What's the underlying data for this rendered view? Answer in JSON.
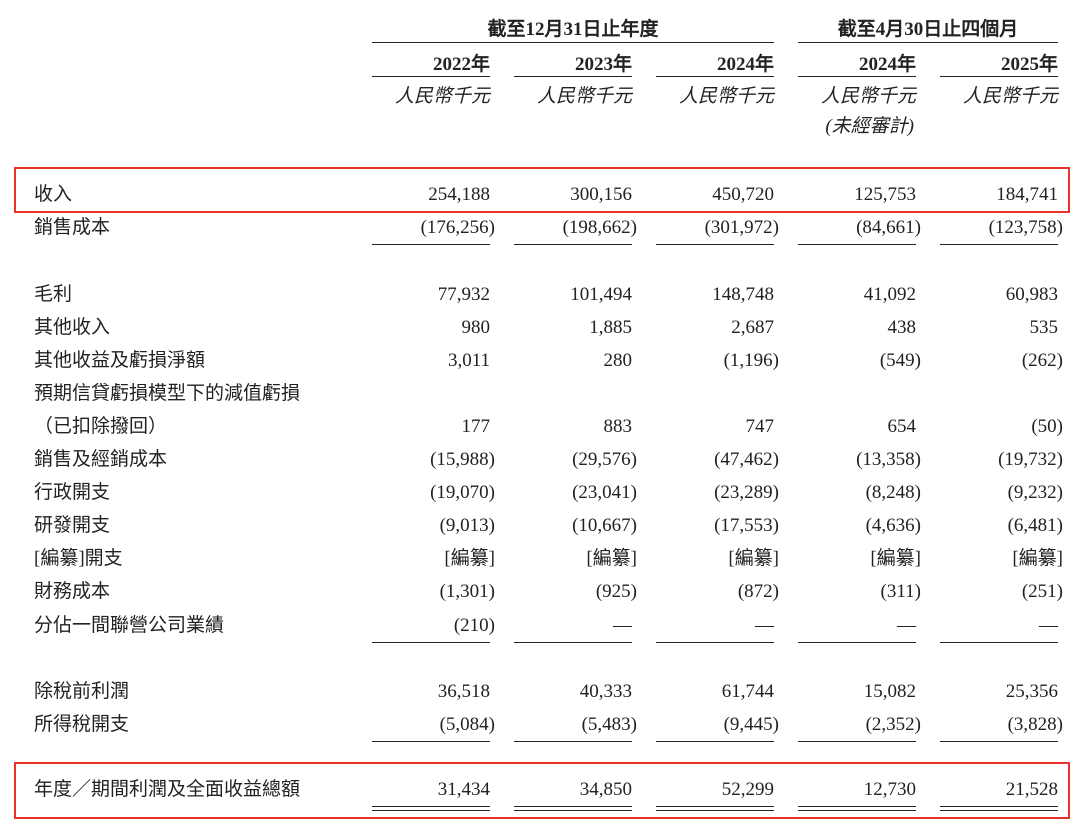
{
  "header": {
    "groups": [
      "截至12月31日止年度",
      "截至4月30日止四個月"
    ],
    "years": [
      "2022年",
      "2023年",
      "2024年",
      "2024年",
      "2025年"
    ],
    "unit": "人民幣千元",
    "note": "(未經審計)"
  },
  "rows": [
    {
      "label": "收入",
      "values": [
        "254,188",
        "300,156",
        "450,720",
        "125,753",
        "184,741"
      ],
      "highlight": true
    },
    {
      "label": "銷售成本",
      "values": [
        "(176,256)",
        "(198,662)",
        "(301,972)",
        "(84,661)",
        "(123,758)"
      ],
      "rule": "single"
    },
    {
      "label": "毛利",
      "values": [
        "77,932",
        "101,494",
        "148,748",
        "41,092",
        "60,983"
      ]
    },
    {
      "label": "其他收入",
      "values": [
        "980",
        "1,885",
        "2,687",
        "438",
        "535"
      ]
    },
    {
      "label": "其他收益及虧損淨額",
      "values": [
        "3,011",
        "280",
        "(1,196)",
        "(549)",
        "(262)"
      ]
    },
    {
      "label": "預期信貸虧損模型下的減值虧損",
      "sublabel": "（已扣除撥回）",
      "values": [
        "177",
        "883",
        "747",
        "654",
        "(50)"
      ]
    },
    {
      "label": "銷售及經銷成本",
      "values": [
        "(15,988)",
        "(29,576)",
        "(47,462)",
        "(13,358)",
        "(19,732)"
      ]
    },
    {
      "label": "行政開支",
      "values": [
        "(19,070)",
        "(23,041)",
        "(23,289)",
        "(8,248)",
        "(9,232)"
      ]
    },
    {
      "label": "研發開支",
      "values": [
        "(9,013)",
        "(10,667)",
        "(17,553)",
        "(4,636)",
        "(6,481)"
      ]
    },
    {
      "label": "[編纂]開支",
      "values": [
        "[編纂]",
        "[編纂]",
        "[編纂]",
        "[編纂]",
        "[編纂]"
      ]
    },
    {
      "label": "財務成本",
      "values": [
        "(1,301)",
        "(925)",
        "(872)",
        "(311)",
        "(251)"
      ]
    },
    {
      "label": "分佔一間聯營公司業績",
      "values": [
        "(210)",
        "—",
        "—",
        "—",
        "—"
      ],
      "rule": "single"
    },
    {
      "label": "除稅前利潤",
      "values": [
        "36,518",
        "40,333",
        "61,744",
        "15,082",
        "25,356"
      ]
    },
    {
      "label": "所得稅開支",
      "values": [
        "(5,084)",
        "(5,483)",
        "(9,445)",
        "(2,352)",
        "(3,828)"
      ],
      "rule": "single"
    },
    {
      "label": "年度／期間利潤及全面收益總額",
      "values": [
        "31,434",
        "34,850",
        "52,299",
        "12,730",
        "21,528"
      ],
      "rule": "double",
      "highlight": true
    }
  ]
}
